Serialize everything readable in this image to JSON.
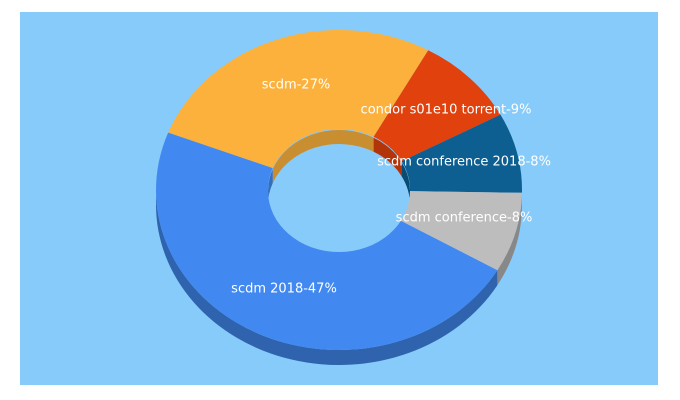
{
  "chart_data": {
    "type": "pie",
    "donut": true,
    "values": [
      27,
      9,
      8,
      8,
      47
    ],
    "value_labels": [
      "scdm-27%",
      "condor s01e10 torrent-9%",
      "scdm conference 2018-8%",
      "scdm conference-8%",
      "scdm 2018-47%"
    ],
    "colors": [
      "#fbb13c",
      "#e1410c",
      "#0d5e91",
      "#bdbdbd",
      "#4189f0"
    ]
  }
}
